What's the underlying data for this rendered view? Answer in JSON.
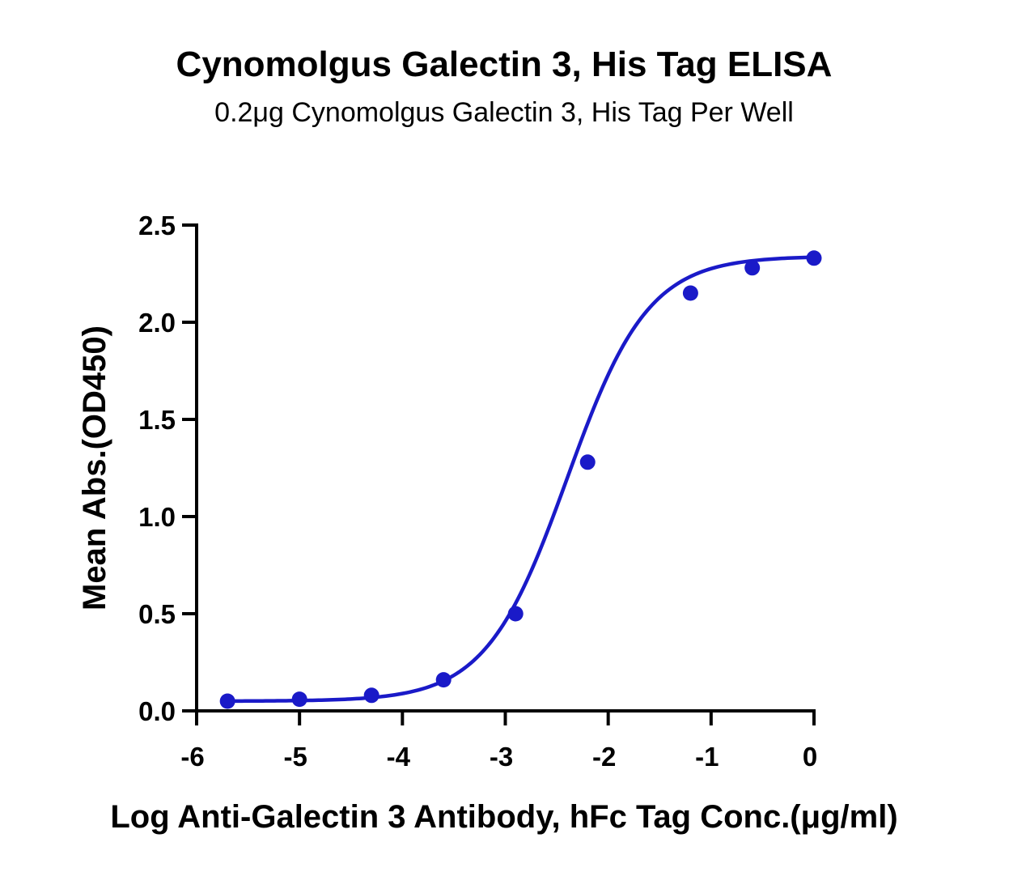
{
  "colors": {
    "series": "#1a1ac8",
    "axis": "#000000",
    "background": "#ffffff"
  },
  "chart_data": {
    "type": "scatter",
    "title": "Cynomolgus Galectin 3, His Tag ELISA",
    "subtitle": "0.2μg Cynomolgus Galectin 3, His Tag Per Well",
    "xlabel": "Log Anti-Galectin 3 Antibody, hFc Tag Conc.(μg/ml)",
    "ylabel": "Mean Abs.(OD450)",
    "xlim": [
      -6,
      0
    ],
    "ylim": [
      0,
      2.5
    ],
    "x_ticks": [
      "-6",
      "-5",
      "-4",
      "-3",
      "-2",
      "-1",
      "0"
    ],
    "y_ticks": [
      "0.0",
      "0.5",
      "1.0",
      "1.5",
      "2.0",
      "2.5"
    ],
    "grid": false,
    "legend": "none",
    "fit": {
      "model": "four-parameter logistic",
      "bottom": 0.05,
      "top": 2.34,
      "log_ec50": -2.4,
      "hill_slope": 1.1
    },
    "series": [
      {
        "x": [
          -5.7,
          -5.0,
          -4.3,
          -3.6,
          -2.9,
          -2.2,
          -1.2,
          -0.6,
          0.0
        ],
        "y": [
          0.05,
          0.06,
          0.08,
          0.16,
          0.5,
          1.28,
          2.15,
          2.28,
          2.33
        ]
      }
    ]
  }
}
